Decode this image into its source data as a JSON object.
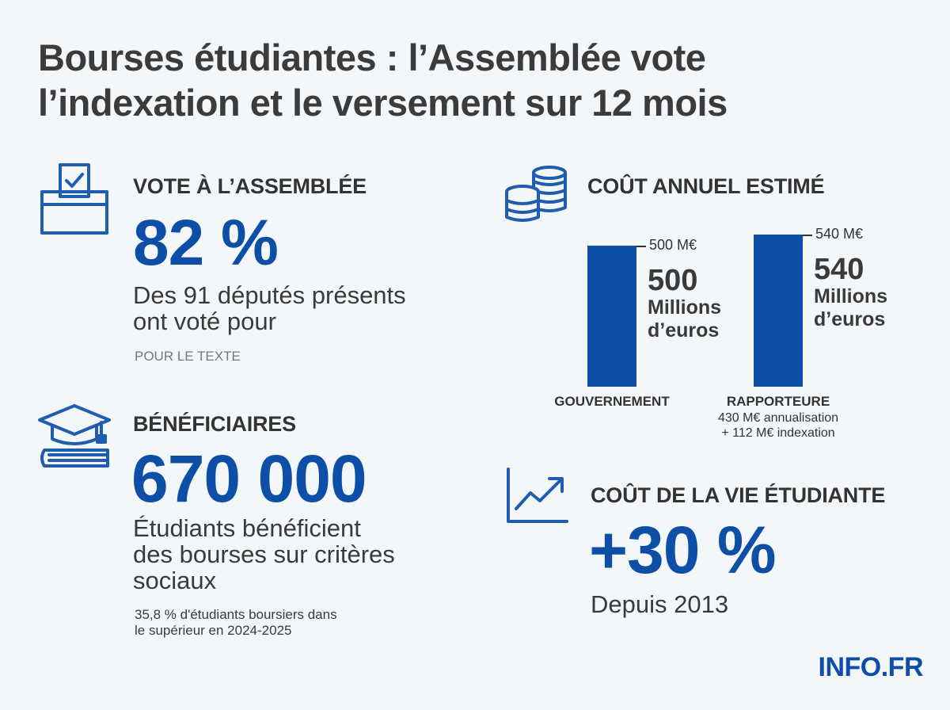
{
  "title": {
    "line1": "Bourses étudiantes : l’Assemblée vote",
    "line2": "l’indexation et le versement sur 12 mois"
  },
  "vote": {
    "icon": "ballot-box-icon",
    "heading": "VOTE À L’ASSEMBLÉE",
    "value": "82 %",
    "desc_line1": "Des 91 députés présents",
    "desc_line2": "ont voté pour",
    "note": "POUR LE TEXTE"
  },
  "beneficiaires": {
    "icon": "graduation-cap-icon",
    "heading": "BÉNÉFICIAIRES",
    "value": "670 000",
    "desc_line1": "Étudiants bénéficient",
    "desc_line2": "des bourses sur critères",
    "desc_line3": "sociaux",
    "note_line1": "35,8 % d'étudiants boursiers dans",
    "note_line2": "le supérieur en 2024-2025"
  },
  "cout_annuel": {
    "icon": "coins-stack-icon",
    "heading": "COÛT ANNUEL ESTIMÉ"
  },
  "chart_data": {
    "type": "bar",
    "title": "COÛT ANNUEL ESTIMÉ",
    "categories": [
      "GOUVERNEMENT",
      "RAPPORTEURE"
    ],
    "values": [
      500,
      540
    ],
    "unit": "M€",
    "value_labels": [
      "500 M€",
      "540 M€"
    ],
    "value_numbers": [
      "500",
      "540"
    ],
    "value_unit_line1": "Millions",
    "value_unit_line2": "d’euros",
    "category_notes": [
      [],
      [
        "430 M€ annualisation",
        "+ 112 M€ indexation"
      ]
    ],
    "ylim": [
      0,
      540
    ],
    "grid": false,
    "colors": [
      "#0d4fa7"
    ]
  },
  "cout_vie": {
    "icon": "trend-up-chart-icon",
    "heading": "COÛT DE LA VIE ÉTUDIANTE",
    "value": "+30 %",
    "desc": "Depuis 2013"
  },
  "brand": "INFO.FR",
  "colors": {
    "accent": "#0d4fa7",
    "background": "#f4f7fa",
    "text": "#333333"
  }
}
